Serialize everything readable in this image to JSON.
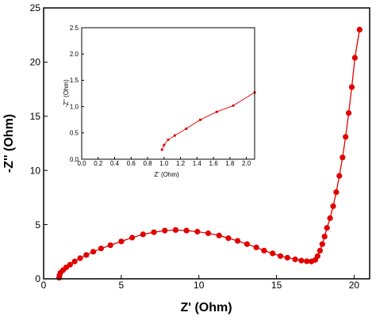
{
  "chart_data": [
    {
      "type": "scatter",
      "title": "",
      "xlabel": "Z' (Ohm)",
      "ylabel": "-Z'' (Ohm)",
      "xlim": [
        0,
        21
      ],
      "ylim": [
        0,
        25
      ],
      "xticks": [
        "0",
        "5",
        "10",
        "15",
        "20"
      ],
      "yticks": [
        "0",
        "5",
        "10",
        "15",
        "20",
        "25"
      ],
      "grid": false,
      "colors": {
        "series": "#e00000",
        "axes": "#000000"
      },
      "series": [
        {
          "marker": "circle",
          "line": true,
          "points": [
            [
              1.0,
              0.1
            ],
            [
              1.02,
              0.3
            ],
            [
              1.08,
              0.55
            ],
            [
              1.25,
              0.8
            ],
            [
              1.45,
              1.05
            ],
            [
              1.7,
              1.3
            ],
            [
              2.0,
              1.6
            ],
            [
              2.35,
              1.9
            ],
            [
              2.75,
              2.2
            ],
            [
              3.2,
              2.5
            ],
            [
              3.7,
              2.8
            ],
            [
              4.3,
              3.1
            ],
            [
              5.0,
              3.45
            ],
            [
              5.7,
              3.8
            ],
            [
              6.4,
              4.1
            ],
            [
              7.1,
              4.3
            ],
            [
              7.8,
              4.45
            ],
            [
              8.5,
              4.5
            ],
            [
              9.2,
              4.45
            ],
            [
              9.9,
              4.35
            ],
            [
              10.6,
              4.2
            ],
            [
              11.3,
              4.0
            ],
            [
              11.9,
              3.75
            ],
            [
              12.5,
              3.5
            ],
            [
              13.1,
              3.2
            ],
            [
              13.7,
              2.9
            ],
            [
              14.2,
              2.6
            ],
            [
              14.75,
              2.35
            ],
            [
              15.25,
              2.1
            ],
            [
              15.7,
              1.95
            ],
            [
              16.2,
              1.8
            ],
            [
              16.6,
              1.68
            ],
            [
              16.95,
              1.62
            ],
            [
              17.25,
              1.6
            ],
            [
              17.5,
              1.75
            ],
            [
              17.65,
              2.1
            ],
            [
              17.8,
              2.6
            ],
            [
              17.95,
              3.2
            ],
            [
              18.1,
              3.9
            ],
            [
              18.25,
              4.7
            ],
            [
              18.45,
              5.6
            ],
            [
              18.65,
              6.7
            ],
            [
              18.85,
              8.0
            ],
            [
              19.05,
              9.5
            ],
            [
              19.25,
              11.2
            ],
            [
              19.45,
              13.1
            ],
            [
              19.65,
              15.3
            ],
            [
              19.85,
              17.7
            ],
            [
              20.05,
              20.4
            ],
            [
              20.35,
              23.0
            ]
          ]
        }
      ]
    },
    {
      "type": "scatter",
      "title": "",
      "xlabel": "Z' (Ohm)",
      "ylabel": "-Z'' (Ohm)",
      "xlim": [
        0,
        2.1
      ],
      "ylim": [
        0,
        2.5
      ],
      "xticks": [
        "0.0",
        "0.2",
        "0.4",
        "0.6",
        "0.8",
        "1.0",
        "1.2",
        "1.4",
        "1.6",
        "1.8",
        "2.0"
      ],
      "yticks": [
        "0.0",
        "0.5",
        "1.0",
        "1.5",
        "2.0",
        "2.5"
      ],
      "grid": false,
      "series": [
        {
          "marker": "circle",
          "line": true,
          "points": [
            [
              0.975,
              0.18
            ],
            [
              1.0,
              0.27
            ],
            [
              1.05,
              0.37
            ],
            [
              1.13,
              0.45
            ],
            [
              1.27,
              0.58
            ],
            [
              1.44,
              0.75
            ],
            [
              1.64,
              0.9
            ],
            [
              1.84,
              1.02
            ],
            [
              2.1,
              1.27
            ]
          ]
        }
      ]
    }
  ]
}
